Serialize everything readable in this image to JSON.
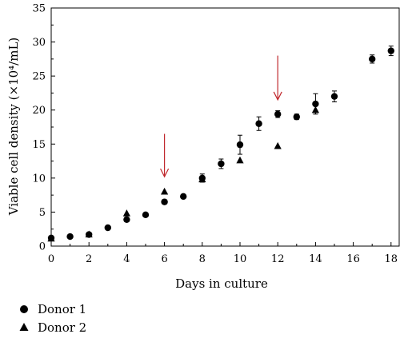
{
  "chart_data": {
    "type": "scatter",
    "xlabel": "Days in culture",
    "ylabel": "Viable cell density (×10⁴/mL)",
    "xlim": [
      0,
      18.5
    ],
    "ylim": [
      0,
      35
    ],
    "xticks": [
      0,
      2,
      4,
      6,
      8,
      10,
      12,
      14,
      16,
      18
    ],
    "yticks": [
      0,
      5,
      10,
      15,
      20,
      25,
      30,
      35
    ],
    "grid": false,
    "legend_placement": "bottom-left",
    "series": [
      {
        "name": "Donor 1",
        "marker": "circle",
        "color": "#000000",
        "points": [
          {
            "x": 0,
            "y": 1.2,
            "err": 0.2
          },
          {
            "x": 1,
            "y": 1.4,
            "err": 0.2
          },
          {
            "x": 2,
            "y": 1.7,
            "err": 0.2
          },
          {
            "x": 3,
            "y": 2.7,
            "err": 0.2
          },
          {
            "x": 4,
            "y": 3.9,
            "err": 0.3
          },
          {
            "x": 5,
            "y": 4.6,
            "err": 0.2
          },
          {
            "x": 6,
            "y": 6.5,
            "err": 0.3
          },
          {
            "x": 7,
            "y": 7.3,
            "err": 0.2
          },
          {
            "x": 8,
            "y": 10.0,
            "err": 0.6
          },
          {
            "x": 9,
            "y": 12.1,
            "err": 0.7
          },
          {
            "x": 10,
            "y": 14.9,
            "err": 1.4
          },
          {
            "x": 11,
            "y": 18.0,
            "err": 1.0
          },
          {
            "x": 12,
            "y": 19.4,
            "err": 0.5
          },
          {
            "x": 13,
            "y": 19.0,
            "err": 0.4
          },
          {
            "x": 14,
            "y": 20.9,
            "err": 1.5
          },
          {
            "x": 15,
            "y": 22.0,
            "err": 0.8
          },
          {
            "x": 17,
            "y": 27.5,
            "err": 0.6
          },
          {
            "x": 18,
            "y": 28.7,
            "err": 0.7
          }
        ]
      },
      {
        "name": "Donor 2",
        "marker": "triangle",
        "color": "#000000",
        "points": [
          {
            "x": 0,
            "y": 1.1
          },
          {
            "x": 2,
            "y": 1.7
          },
          {
            "x": 4,
            "y": 4.8
          },
          {
            "x": 6,
            "y": 8.0
          },
          {
            "x": 8,
            "y": 9.8
          },
          {
            "x": 10,
            "y": 12.6
          },
          {
            "x": 12,
            "y": 14.7
          },
          {
            "x": 14,
            "y": 20.0
          }
        ]
      }
    ],
    "annotations": [
      {
        "type": "arrow",
        "color": "#c0282d",
        "x": 6,
        "y_from": 16.5,
        "y_to": 10.2
      },
      {
        "type": "arrow",
        "color": "#c0282d",
        "x": 12,
        "y_from": 28.0,
        "y_to": 21.5
      }
    ]
  }
}
